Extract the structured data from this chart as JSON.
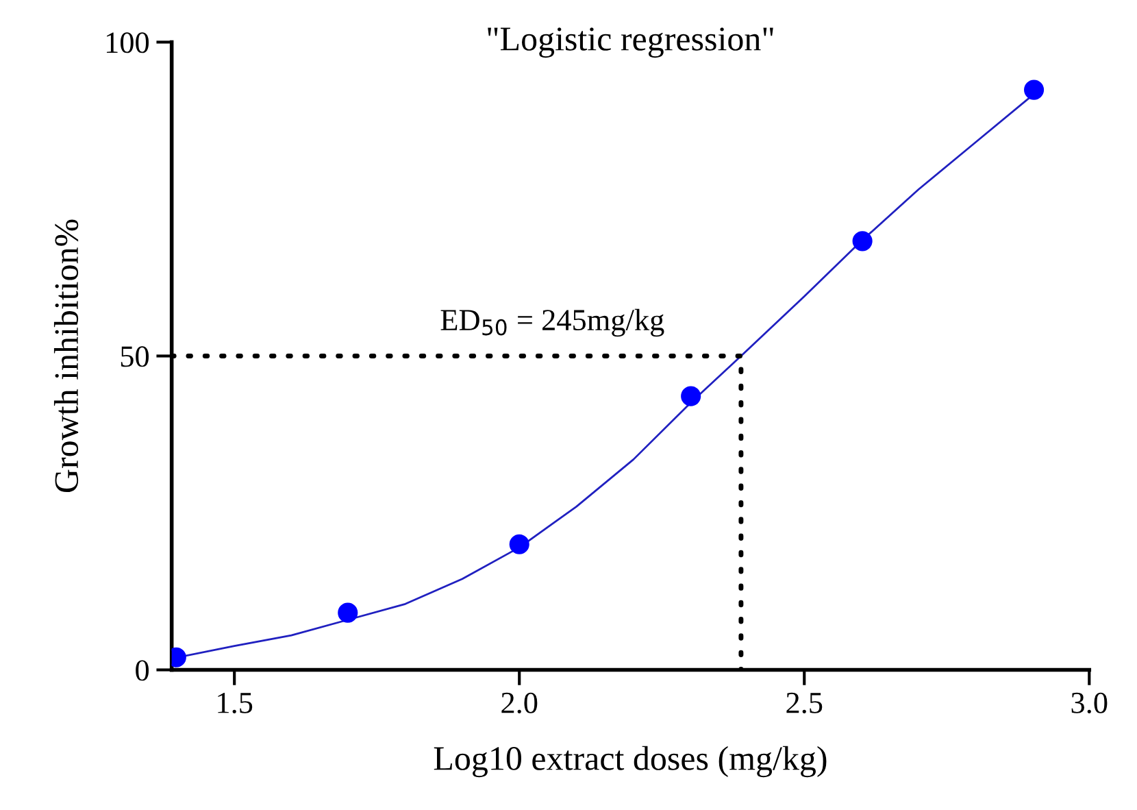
{
  "chart_data": {
    "type": "scatter",
    "title": "\"Logistic regression\"",
    "xlabel": "Log10 extract doses (mg/kg)",
    "ylabel": "Growth inhibition%",
    "series": [
      {
        "color": "#0000ff",
        "marker": "circle",
        "x": [
          1.398,
          1.699,
          2.0,
          2.301,
          2.602,
          2.903
        ],
        "values": [
          2.0,
          9.1,
          20,
          43.6,
          68.3,
          92.4
        ]
      },
      {
        "type": "line",
        "color": "#2020c0",
        "marker": "none",
        "line_style": "solid",
        "x": [
          1.39,
          1.5,
          1.6,
          1.7,
          1.8,
          1.9,
          2.0,
          2.1,
          2.2,
          2.3,
          2.389,
          2.5,
          2.6,
          2.7,
          2.8,
          2.9
        ],
        "values": [
          1.8,
          3.8,
          5.5,
          8,
          10.5,
          14.5,
          19.5,
          26,
          33.5,
          42.5,
          50,
          59.5,
          68.3,
          76.5,
          84,
          91.5
        ]
      },
      {
        "type": "line",
        "color": "#000000",
        "marker": "none",
        "line_style": "dotted",
        "x": [
          1.39,
          2.389,
          2.389
        ],
        "values": [
          50,
          50,
          0
        ]
      }
    ],
    "annotations": [
      {
        "text": "ED$_{50}$ = 245mg/kg",
        "x": 2.389,
        "y": 50
      }
    ],
    "xlim": [
      1.39,
      3.0
    ],
    "ylim": [
      0,
      100
    ],
    "xticks": [
      1.5,
      {
        "value": 2,
        "label": "2.0"
      },
      2.5,
      {
        "value": 3,
        "label": "3.0"
      }
    ],
    "yticks": [
      0,
      50,
      100
    ],
    "grid": false,
    "legend": false
  }
}
